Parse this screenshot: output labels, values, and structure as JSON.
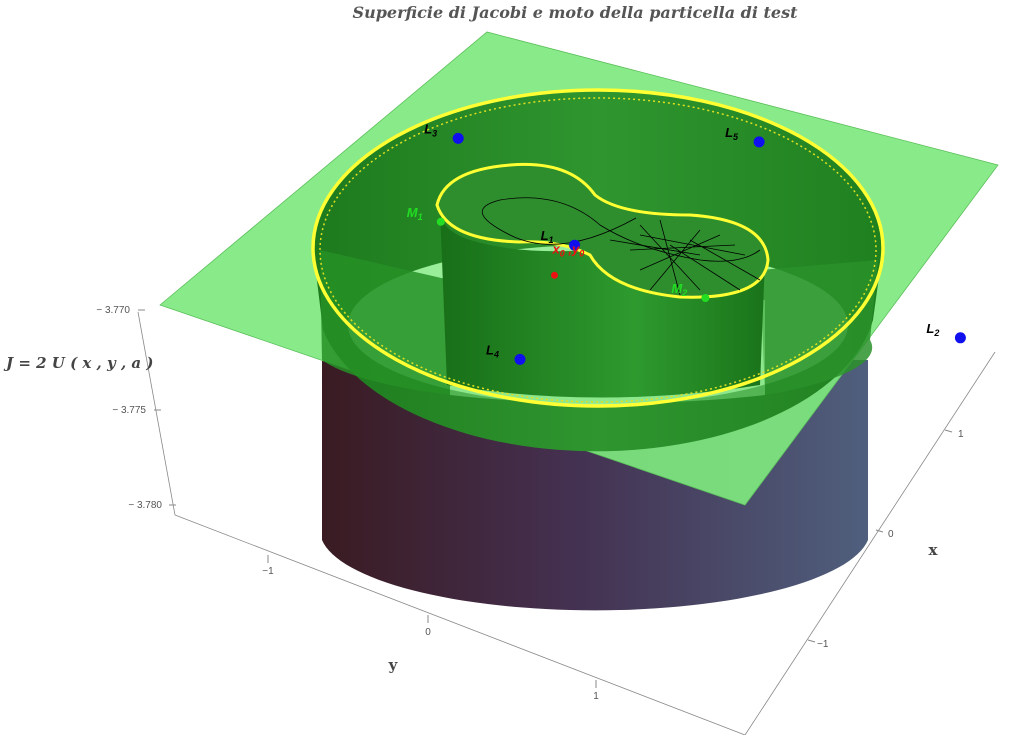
{
  "chart_data": {
    "type": "surface3d",
    "title": "Superficie di Jacobi e moto della particella di test",
    "zlabel": "J = 2 U ( x , y , a )",
    "xlabel": "x",
    "ylabel": "y",
    "zlim": [
      -3.78,
      -3.77
    ],
    "z_ticks": [
      "− 3.770",
      "− 3.775",
      "− 3.780"
    ],
    "x_ticks": [
      "1",
      "0",
      "−1"
    ],
    "y_ticks": [
      "−1",
      "0",
      "1"
    ],
    "grid": false,
    "colors": {
      "plane": "#7ee87e",
      "inner_wall": "#2e8b2e",
      "contour": "#ffff33",
      "lagrange_point": "#1010ee",
      "mass": "#22dd22",
      "initial_point": "#ee1111",
      "trajectory": "#000000"
    },
    "points": [
      {
        "name": "L",
        "sub": "1",
        "x": -0.05,
        "y": 0.05,
        "color": "#1010ee",
        "label_color": "#000000"
      },
      {
        "name": "L",
        "sub": "2",
        "x": 1.05,
        "y": -0.55,
        "color": "#1010ee",
        "label_color": "#000000"
      },
      {
        "name": "L",
        "sub": "3",
        "x": -0.85,
        "y": -0.15,
        "color": "#1010ee",
        "label_color": "#000000"
      },
      {
        "name": "L",
        "sub": "4",
        "x": 0.55,
        "y": 0.75,
        "color": "#1010ee",
        "label_color": "#000000"
      },
      {
        "name": "L",
        "sub": "5",
        "x": -0.4,
        "y": -0.95,
        "color": "#1010ee",
        "label_color": "#000000"
      },
      {
        "name": "M",
        "sub": "1",
        "x": -0.38,
        "y": 0.3,
        "color": "#22dd22",
        "label_color": "#22dd22"
      },
      {
        "name": "M",
        "sub": "2",
        "x": 0.45,
        "y": -0.05,
        "color": "#22dd22",
        "label_color": "#22dd22"
      }
    ],
    "initial_point": {
      "label": "x",
      "sub_x": "0",
      "sep": ",",
      "label_y": "y",
      "sub_y": "0",
      "x": 0.1,
      "y": 0.25
    }
  }
}
